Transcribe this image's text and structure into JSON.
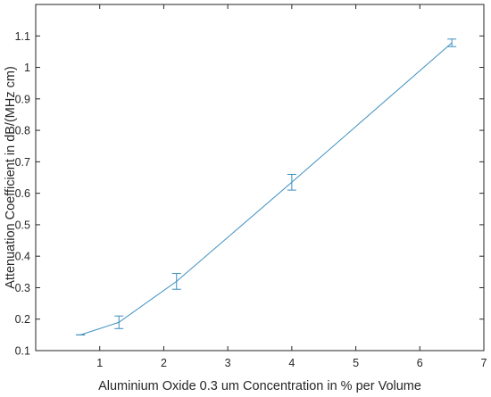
{
  "chart_data": {
    "type": "line",
    "title": "",
    "xlabel": "Aluminium Oxide 0.3 um Concentration in % per Volume",
    "ylabel": "Attenuation Coefficient in dB/(MHz cm)",
    "xlim": [
      0,
      7
    ],
    "ylim": [
      0.1,
      1.2
    ],
    "xticks": [
      1,
      2,
      3,
      4,
      5,
      6,
      7
    ],
    "yticks": [
      0.1,
      0.2,
      0.3,
      0.4,
      0.5,
      0.6,
      0.7,
      0.8,
      0.9,
      1,
      1.1
    ],
    "grid": false,
    "line_color": "#3B8EC0",
    "series": [
      {
        "x": [
          0.7,
          1.3,
          2.2,
          4.0,
          6.5
        ],
        "y": [
          0.15,
          0.19,
          0.32,
          0.635,
          1.078
        ],
        "err": [
          0.0,
          0.02,
          0.025,
          0.025,
          0.012
        ]
      }
    ]
  }
}
